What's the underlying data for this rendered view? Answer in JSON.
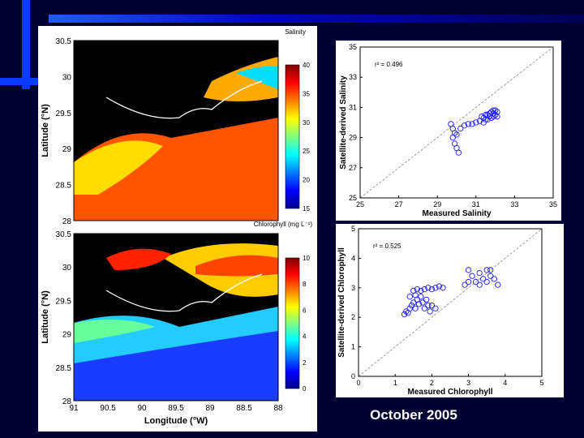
{
  "slide": {
    "caption": "October 2005",
    "colors": {
      "background": "#000033",
      "deco_bar": "#0000cc",
      "deco_bar_light": "#1e5bff",
      "panel": "#ffffff"
    }
  },
  "map_salinity": {
    "title": "Salinity",
    "ylabel": "Latitude (°N)",
    "lat_ticks": [
      "30.5",
      "30",
      "29.5",
      "29",
      "28.5",
      "28"
    ],
    "colorbar_ticks": [
      "40",
      "35",
      "30",
      "25",
      "20",
      "15"
    ],
    "colorbar_range": [
      15,
      40
    ]
  },
  "map_chlorophyll": {
    "title": "Chlorophyll (mg L⁻¹)",
    "ylabel": "Latitude (°N)",
    "xlabel": "Longitude (°W)",
    "lat_ticks": [
      "30.5",
      "30",
      "29.5",
      "29",
      "28.5",
      "28"
    ],
    "lon_ticks": [
      "91",
      "90.5",
      "90",
      "89.5",
      "89",
      "88.5",
      "88"
    ],
    "colorbar_ticks": [
      "10",
      "8",
      "6",
      "4",
      "2",
      "0"
    ],
    "colorbar_range": [
      0,
      10
    ]
  },
  "chart_data": [
    {
      "type": "scatter",
      "xlabel": "Measured Salinity",
      "ylabel": "Satellite-derived Salinity",
      "annotation": "r² = 0.496",
      "xlim": [
        25,
        35
      ],
      "ylim": [
        25,
        35
      ],
      "xticks": [
        "25",
        "27",
        "29",
        "31",
        "33",
        "35"
      ],
      "yticks": [
        "25",
        "27",
        "29",
        "31",
        "33",
        "35"
      ],
      "one_to_one_line": true,
      "marker_color": "#1a1aff",
      "points": [
        [
          29.8,
          29.6
        ],
        [
          29.9,
          29.3
        ],
        [
          29.8,
          29.0
        ],
        [
          29.9,
          28.6
        ],
        [
          30.0,
          28.3
        ],
        [
          30.1,
          28.0
        ],
        [
          29.7,
          29.9
        ],
        [
          30.0,
          29.2
        ],
        [
          30.2,
          29.6
        ],
        [
          30.4,
          29.8
        ],
        [
          30.6,
          29.9
        ],
        [
          30.8,
          29.9
        ],
        [
          31.0,
          30.0
        ],
        [
          31.2,
          30.1
        ],
        [
          31.3,
          30.4
        ],
        [
          31.4,
          30.3
        ],
        [
          31.5,
          30.2
        ],
        [
          31.6,
          30.5
        ],
        [
          31.7,
          30.6
        ],
        [
          31.8,
          30.7
        ],
        [
          31.9,
          30.6
        ],
        [
          32.0,
          30.5
        ],
        [
          32.0,
          30.8
        ],
        [
          32.1,
          30.4
        ],
        [
          31.4,
          30.0
        ],
        [
          31.6,
          30.2
        ],
        [
          31.8,
          30.3
        ],
        [
          31.9,
          30.4
        ],
        [
          32.1,
          30.7
        ],
        [
          31.7,
          30.4
        ],
        [
          31.5,
          30.5
        ],
        [
          31.9,
          30.8
        ]
      ]
    },
    {
      "type": "scatter",
      "xlabel": "Measured Chlorophyll",
      "ylabel": "Satellite-derived Chlorophyll",
      "annotation": "r² = 0.525",
      "xlim": [
        0,
        5
      ],
      "ylim": [
        0,
        5
      ],
      "xticks": [
        "0",
        "1",
        "2",
        "3",
        "4",
        "5"
      ],
      "yticks": [
        "0",
        "1",
        "2",
        "3",
        "4",
        "5"
      ],
      "one_to_one_line": true,
      "marker_color": "#1a1aff",
      "points": [
        [
          1.25,
          2.1
        ],
        [
          1.3,
          2.2
        ],
        [
          1.35,
          2.15
        ],
        [
          1.4,
          2.3
        ],
        [
          1.45,
          2.4
        ],
        [
          1.5,
          2.5
        ],
        [
          1.55,
          2.3
        ],
        [
          1.6,
          2.6
        ],
        [
          1.65,
          2.45
        ],
        [
          1.7,
          2.7
        ],
        [
          1.75,
          2.5
        ],
        [
          1.8,
          2.3
        ],
        [
          1.85,
          2.6
        ],
        [
          1.9,
          2.4
        ],
        [
          1.95,
          2.2
        ],
        [
          1.5,
          2.9
        ],
        [
          1.6,
          2.95
        ],
        [
          1.7,
          2.9
        ],
        [
          1.8,
          2.95
        ],
        [
          1.9,
          3.0
        ],
        [
          2.0,
          2.95
        ],
        [
          2.1,
          3.0
        ],
        [
          2.2,
          3.05
        ],
        [
          2.3,
          3.0
        ],
        [
          1.4,
          2.7
        ],
        [
          1.55,
          2.75
        ],
        [
          2.0,
          2.4
        ],
        [
          2.1,
          2.3
        ],
        [
          3.0,
          3.6
        ],
        [
          3.1,
          3.4
        ],
        [
          3.2,
          3.2
        ],
        [
          3.3,
          3.5
        ],
        [
          3.4,
          3.3
        ],
        [
          3.5,
          3.6
        ],
        [
          3.6,
          3.4
        ],
        [
          3.7,
          3.3
        ],
        [
          3.8,
          3.1
        ],
        [
          2.9,
          3.1
        ],
        [
          3.0,
          3.2
        ],
        [
          3.3,
          3.1
        ],
        [
          3.5,
          3.2
        ],
        [
          3.6,
          3.6
        ]
      ]
    }
  ]
}
